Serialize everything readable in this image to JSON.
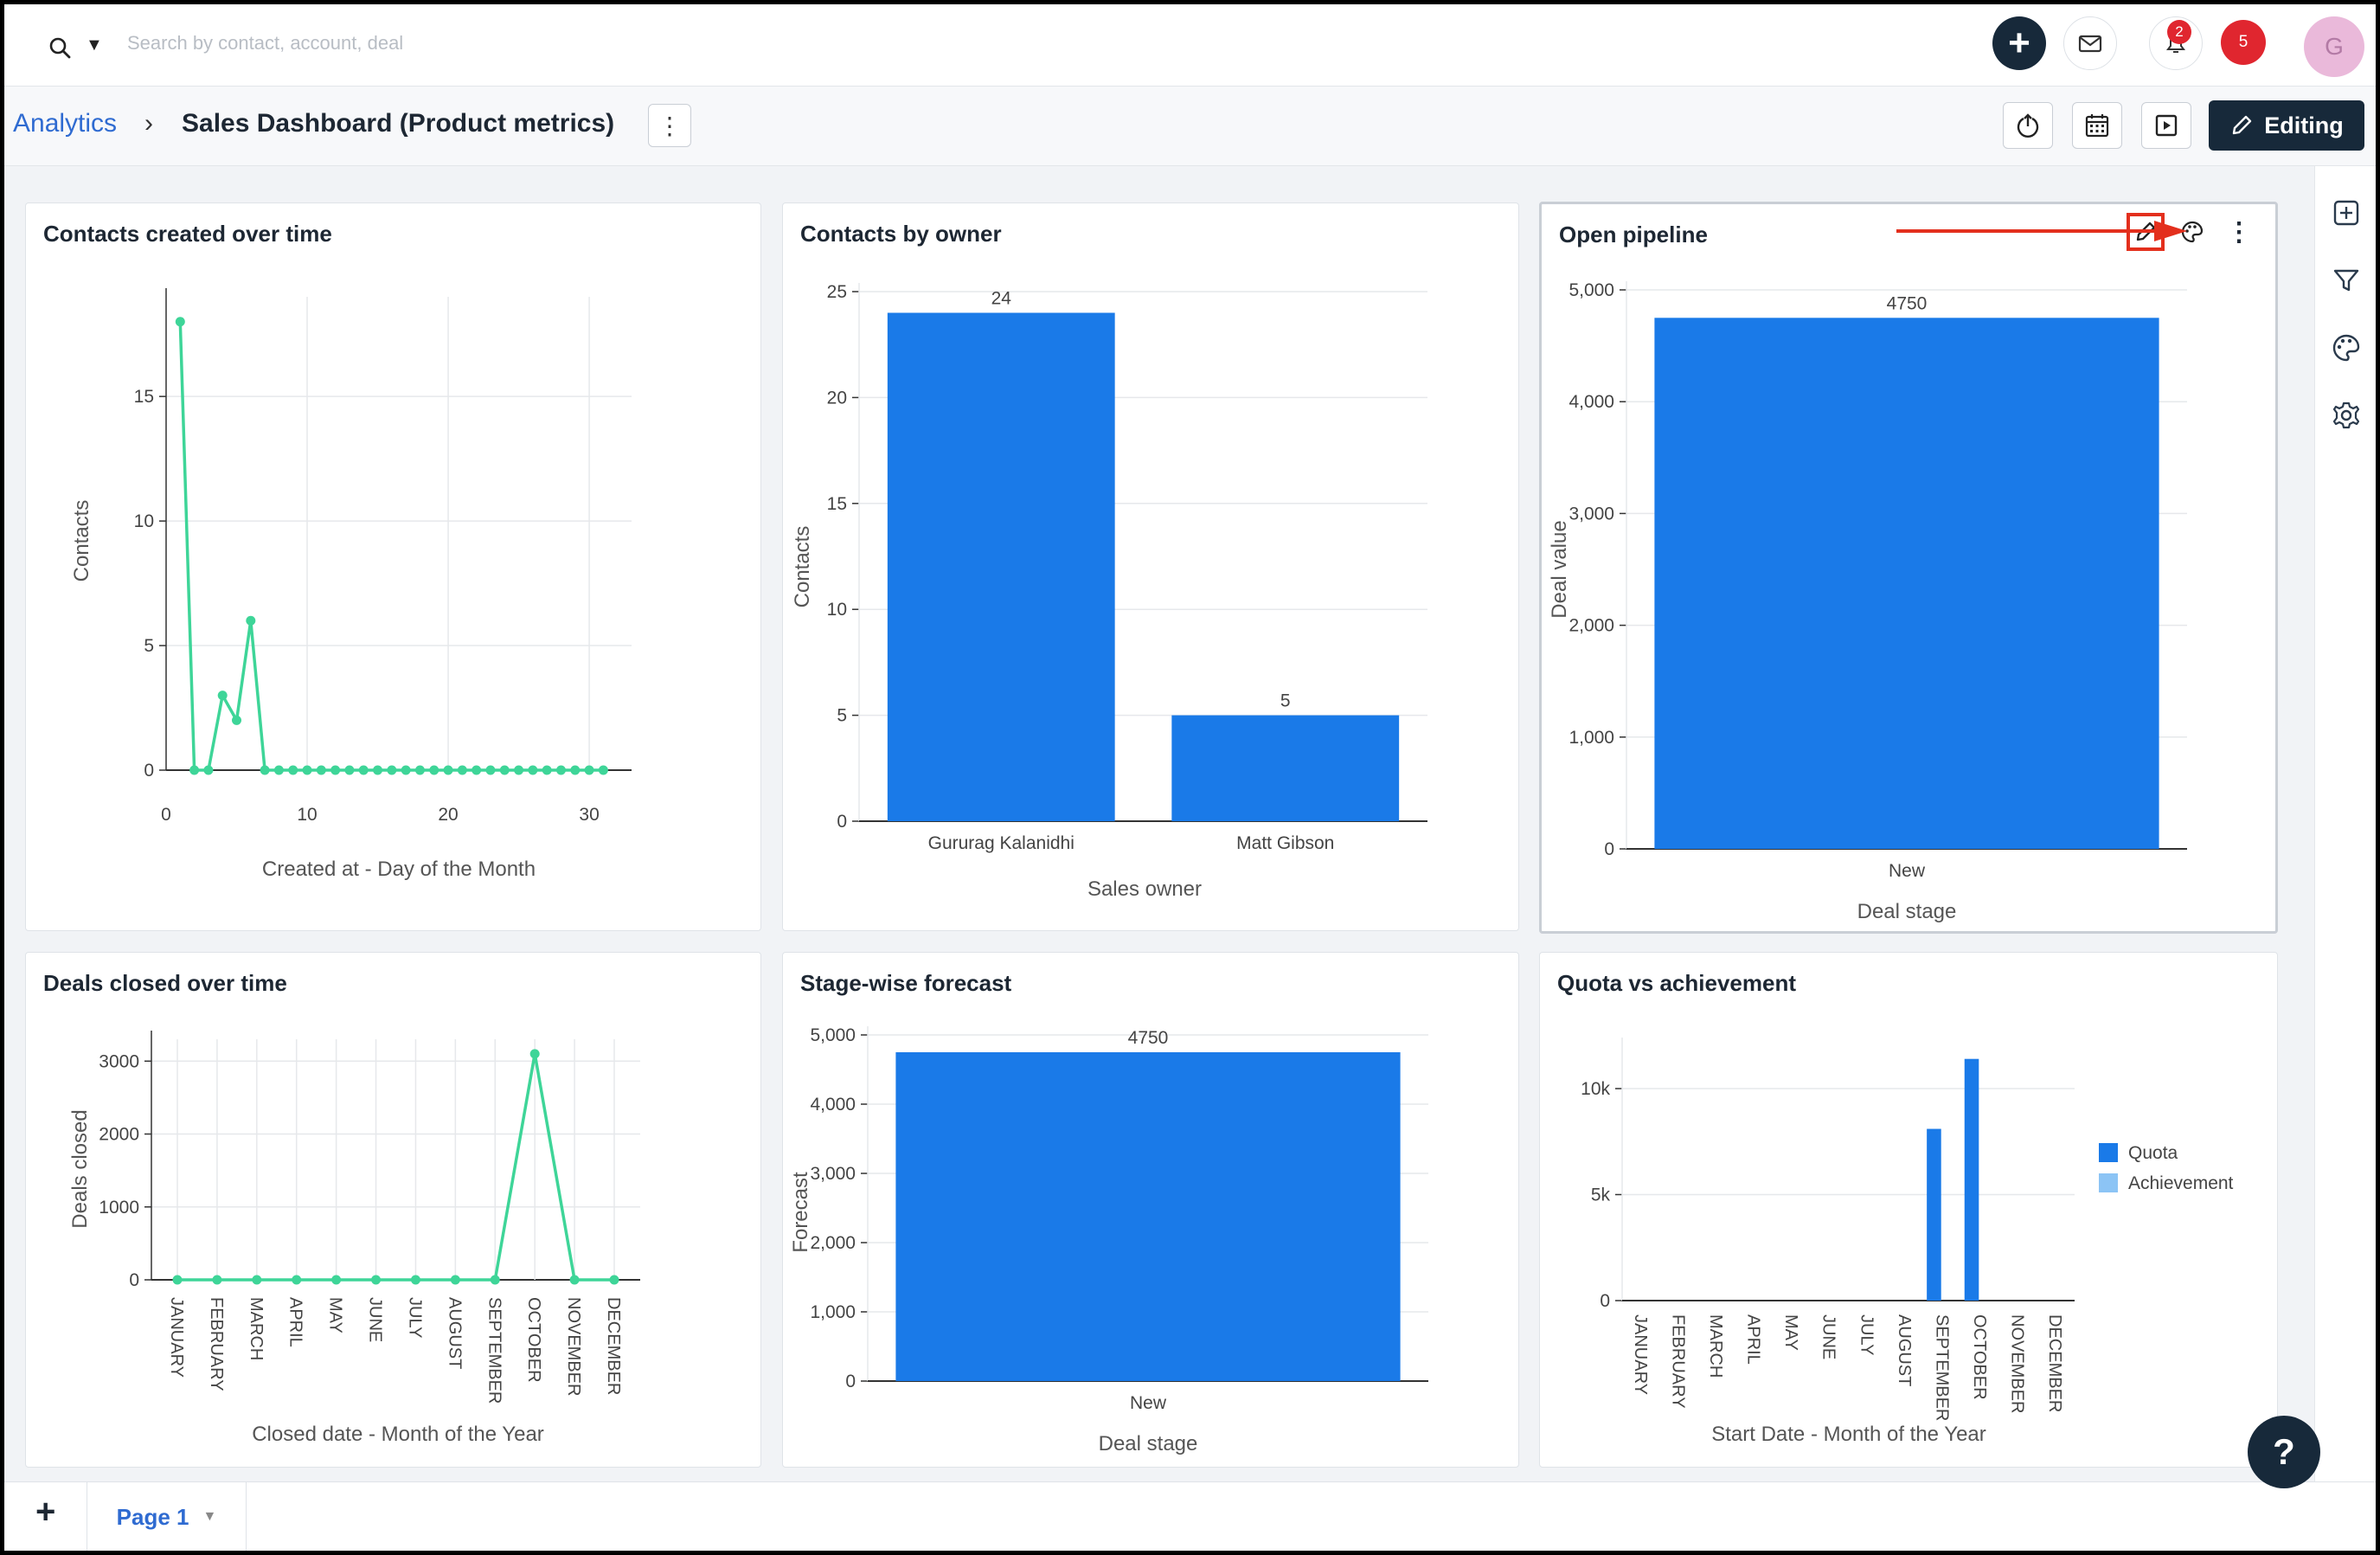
{
  "search": {
    "placeholder": "Search by contact, account, deal"
  },
  "topbar": {
    "notification_count": "2",
    "alert_count": "5",
    "avatar_initial": "G"
  },
  "header": {
    "breadcrumb_root": "Analytics",
    "breadcrumb_sep": "›",
    "title": "Sales Dashboard (Product metrics)",
    "editing_label": "Editing"
  },
  "cards": [
    {
      "title": "Contacts created over time",
      "chart_data": {
        "type": "line",
        "title": "Contacts created over time",
        "xlabel": "Created at - Day of the Month",
        "ylabel": "Contacts",
        "x": [
          1,
          2,
          3,
          4,
          5,
          6,
          7,
          8,
          9,
          10,
          11,
          12,
          13,
          14,
          15,
          16,
          17,
          18,
          19,
          20,
          21,
          22,
          23,
          24,
          25,
          26,
          27,
          28,
          29,
          30,
          31
        ],
        "values": [
          18,
          0,
          0,
          3,
          2,
          6,
          0,
          0,
          0,
          0,
          0,
          0,
          0,
          0,
          0,
          0,
          0,
          0,
          0,
          0,
          0,
          0,
          0,
          0,
          0,
          0,
          0,
          0,
          0,
          0,
          0
        ],
        "xlim": [
          0,
          33
        ],
        "ylim": [
          0,
          19
        ],
        "xticks": [
          0,
          10,
          20,
          30
        ],
        "yticks": [
          0,
          5,
          10,
          15
        ],
        "color": "#3ed598",
        "grid": true
      }
    },
    {
      "title": "Contacts by owner",
      "chart_data": {
        "type": "bar",
        "title": "Contacts by owner",
        "xlabel": "Sales owner",
        "ylabel": "Contacts",
        "categories": [
          "Gururag Kalanidhi",
          "Matt Gibson"
        ],
        "values": [
          24,
          5
        ],
        "data_labels": [
          "24",
          "5"
        ],
        "ylim": [
          0,
          25
        ],
        "yticks": [
          0,
          5,
          10,
          15,
          20,
          25
        ],
        "color": "#1a7ae8",
        "grid": true
      }
    },
    {
      "title": "Open pipeline",
      "chart_data": {
        "type": "bar",
        "title": "Open pipeline",
        "xlabel": "Deal stage",
        "ylabel": "Deal value",
        "categories": [
          "New"
        ],
        "values": [
          4750
        ],
        "data_labels": [
          "4750"
        ],
        "ylim": [
          0,
          5000
        ],
        "yticks": [
          0,
          1000,
          2000,
          3000,
          4000,
          5000
        ],
        "ytick_labels": [
          "0",
          "1,000",
          "2,000",
          "3,000",
          "4,000",
          "5,000"
        ],
        "color": "#1a7ae8",
        "grid": true
      }
    },
    {
      "title": "Deals closed over time",
      "chart_data": {
        "type": "line",
        "title": "Deals closed over time",
        "xlabel": "Closed date - Month of the Year",
        "ylabel": "Deals closed",
        "categories": [
          "JANUARY",
          "FEBRUARY",
          "MARCH",
          "APRIL",
          "MAY",
          "JUNE",
          "JULY",
          "AUGUST",
          "SEPTEMBER",
          "OCTOBER",
          "NOVEMBER",
          "DECEMBER"
        ],
        "values": [
          0,
          0,
          0,
          0,
          0,
          0,
          0,
          0,
          0,
          3100,
          0,
          0
        ],
        "ylim": [
          0,
          3300
        ],
        "yticks": [
          0,
          1000,
          2000,
          3000
        ],
        "color": "#3ed598",
        "grid": true
      }
    },
    {
      "title": "Stage-wise forecast",
      "chart_data": {
        "type": "bar",
        "title": "Stage-wise forecast",
        "xlabel": "Deal stage",
        "ylabel": "Forecast",
        "categories": [
          "New"
        ],
        "values": [
          4750
        ],
        "data_labels": [
          "4750"
        ],
        "ylim": [
          0,
          5000
        ],
        "yticks": [
          0,
          1000,
          2000,
          3000,
          4000,
          5000
        ],
        "ytick_labels": [
          "0",
          "1,000",
          "2,000",
          "3,000",
          "4,000",
          "5,000"
        ],
        "color": "#1a7ae8",
        "grid": true
      }
    },
    {
      "title": "Quota vs achievement",
      "chart_data": {
        "type": "bar",
        "title": "Quota vs achievement",
        "xlabel": "Start Date - Month of the Year",
        "ylabel": "",
        "categories": [
          "JANUARY",
          "FEBRUARY",
          "MARCH",
          "APRIL",
          "MAY",
          "JUNE",
          "JULY",
          "AUGUST",
          "SEPTEMBER",
          "OCTOBER",
          "NOVEMBER",
          "DECEMBER"
        ],
        "series": [
          {
            "name": "Quota",
            "color": "#1a7ae8",
            "values": [
              0,
              0,
              0,
              0,
              0,
              0,
              0,
              0,
              8100,
              11400,
              0,
              0
            ]
          },
          {
            "name": "Achievement",
            "color": "#8cc4f5",
            "values": [
              0,
              0,
              0,
              0,
              0,
              0,
              0,
              0,
              0,
              0,
              0,
              0
            ]
          }
        ],
        "ylim": [
          0,
          12000
        ],
        "yticks": [
          0,
          5000,
          10000
        ],
        "ytick_labels": [
          "0",
          "5k",
          "10k"
        ],
        "legend": "right",
        "grid": true
      }
    }
  ],
  "footer": {
    "add_page": "+",
    "page_tab": "Page 1",
    "help": "?"
  },
  "icons": {
    "search": "search-icon",
    "plus": "plus-icon",
    "mail": "mail-icon",
    "notifications": "notification-icon",
    "export": "export-icon",
    "calendar": "calendar-icon",
    "present": "present-icon",
    "edit": "pencil-icon",
    "palette": "palette-icon",
    "more": "kebab-icon",
    "add_widget": "add-widget-icon",
    "filter": "filter-icon",
    "settings": "gear-icon"
  },
  "colors": {
    "navy": "#17293a",
    "accent": "#2f6bd1",
    "bar": "#1a7ae8",
    "line": "#3ed598",
    "alert": "#e0262f",
    "annotation": "#e32f1d"
  }
}
